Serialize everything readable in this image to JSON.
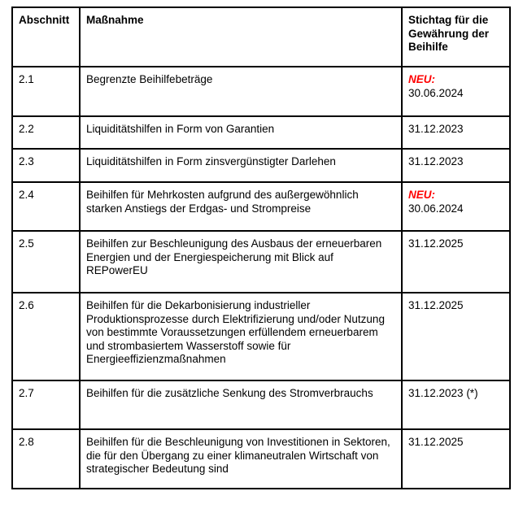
{
  "colors": {
    "neu_red": "#ff0000",
    "border_black": "#000000",
    "background": "#ffffff"
  },
  "table": {
    "headers": {
      "section": "Abschnitt",
      "measure": "Maßnahme",
      "deadline": "Stichtag für die Gewährung der Beihilfe"
    },
    "rows": [
      {
        "section": "2.1",
        "measure": "Begrenzte Beihilfebeträge",
        "neu": "NEU:",
        "date": "30.06.2024"
      },
      {
        "section": "2.2",
        "measure": "Liquiditätshilfen in Form von Garantien",
        "neu": "",
        "date": "31.12.2023"
      },
      {
        "section": "2.3",
        "measure": "Liquiditätshilfen in Form zinsvergünstigter Darlehen",
        "neu": "",
        "date": "31.12.2023"
      },
      {
        "section": "2.4",
        "measure": "Beihilfen für Mehrkosten aufgrund des außergewöhnlich starken Anstiegs der Erdgas- und Strompreise",
        "neu": "NEU:",
        "date": "30.06.2024"
      },
      {
        "section": "2.5",
        "measure": "Beihilfen zur Beschleunigung des Ausbaus der erneuerbaren Energien und der Energiespeicherung mit Blick auf REPowerEU",
        "neu": "",
        "date": "31.12.2025"
      },
      {
        "section": "2.6",
        "measure": "Beihilfen für die Dekarbonisierung industrieller Produktionsprozesse durch Elektrifizierung und/oder Nutzung von bestimmte Voraussetzungen erfüllendem erneuerbarem und strombasiertem Wasserstoff sowie für Energieeffizienzmaßnahmen",
        "neu": "",
        "date": "31.12.2025"
      },
      {
        "section": "2.7",
        "measure": "Beihilfen für die zusätzliche Senkung des Stromverbrauchs",
        "neu": "",
        "date": "31.12.2023 (*)"
      },
      {
        "section": "2.8",
        "measure": "Beihilfen für die Beschleunigung von Investitionen in Sektoren, die für den Übergang zu einer klimaneutralen Wirtschaft von strategischer Bedeutung sind",
        "neu": "",
        "date": "31.12.2025"
      }
    ]
  }
}
